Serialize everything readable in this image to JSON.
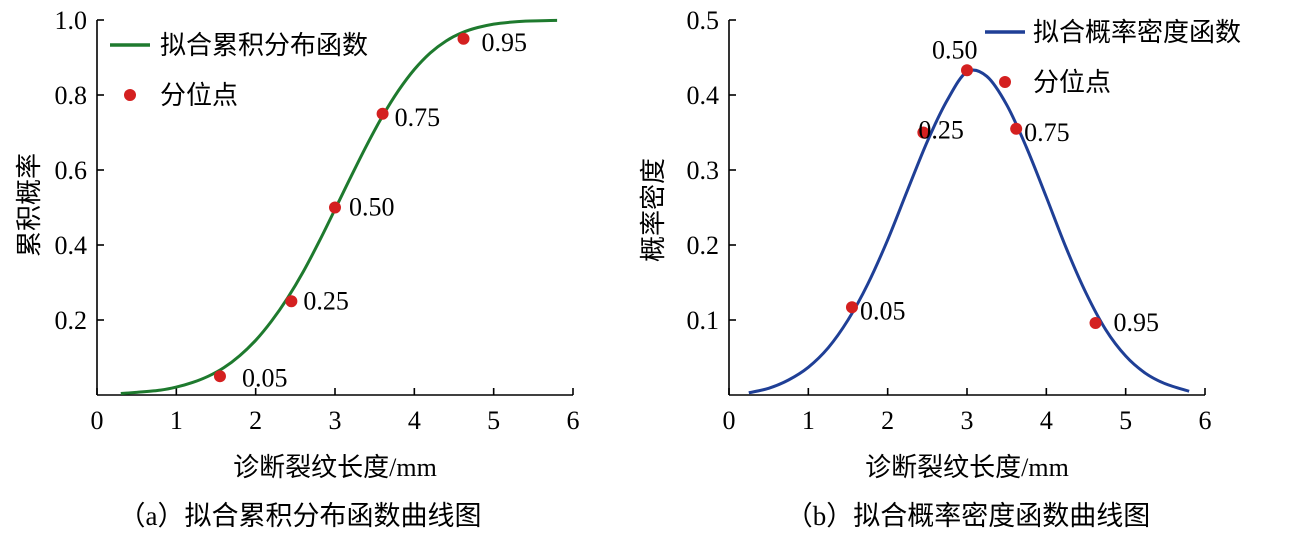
{
  "chart_data": [
    {
      "type": "line",
      "caption": "（a）拟合累积分布函数曲线图",
      "xlabel": "诊断裂纹长度/mm",
      "ylabel": "累积概率",
      "xlim": [
        0,
        6
      ],
      "ylim": [
        0,
        1.0
      ],
      "x_ticks": [
        "0",
        "1",
        "2",
        "3",
        "4",
        "5",
        "6"
      ],
      "y_ticks": [
        "0.2",
        "0.4",
        "0.6",
        "0.8",
        "1.0"
      ],
      "color": "#1e7a2e",
      "marker_color": "#d42020",
      "legend_position": "top-left",
      "series": [
        {
          "name": "拟合累积分布函数",
          "kind": "line",
          "x": [
            0.3,
            0.5,
            0.8,
            1.0,
            1.2,
            1.4,
            1.6,
            1.8,
            2.0,
            2.2,
            2.4,
            2.6,
            2.8,
            3.0,
            3.2,
            3.4,
            3.6,
            3.8,
            4.0,
            4.2,
            4.4,
            4.6,
            4.8,
            5.0,
            5.2,
            5.4,
            5.6,
            5.8
          ],
          "y": [
            0.004,
            0.007,
            0.013,
            0.021,
            0.033,
            0.05,
            0.073,
            0.105,
            0.146,
            0.197,
            0.258,
            0.329,
            0.409,
            0.495,
            0.582,
            0.666,
            0.744,
            0.812,
            0.868,
            0.912,
            0.944,
            0.966,
            0.98,
            0.989,
            0.994,
            0.997,
            0.998,
            0.999
          ]
        },
        {
          "name": "分位点",
          "kind": "scatter",
          "x": [
            1.55,
            2.45,
            3.0,
            3.6,
            4.62
          ],
          "y": [
            0.05,
            0.25,
            0.5,
            0.75,
            0.95
          ],
          "labels": [
            "0.05",
            "0.25",
            "0.50",
            "0.75",
            "0.95"
          ]
        }
      ]
    },
    {
      "type": "line",
      "caption": "（b）拟合概率密度函数曲线图",
      "xlabel": "诊断裂纹长度/mm",
      "ylabel": "概率密度",
      "xlim": [
        0,
        6
      ],
      "ylim": [
        0,
        0.5
      ],
      "x_ticks": [
        "0",
        "1",
        "2",
        "3",
        "4",
        "5",
        "6"
      ],
      "y_ticks": [
        "0.1",
        "0.2",
        "0.3",
        "0.4",
        "0.5"
      ],
      "color": "#1f3f96",
      "marker_color": "#d42020",
      "legend_position": "top-right",
      "series": [
        {
          "name": "拟合概率密度函数",
          "kind": "line",
          "x": [
            0.25,
            0.5,
            0.75,
            1.0,
            1.25,
            1.5,
            1.75,
            2.0,
            2.25,
            2.5,
            2.75,
            3.0,
            3.25,
            3.5,
            3.75,
            4.0,
            4.25,
            4.5,
            4.75,
            5.0,
            5.25,
            5.5,
            5.8
          ],
          "y": [
            0.003,
            0.009,
            0.02,
            0.037,
            0.063,
            0.1,
            0.148,
            0.207,
            0.273,
            0.338,
            0.393,
            0.431,
            0.425,
            0.387,
            0.33,
            0.264,
            0.196,
            0.136,
            0.087,
            0.052,
            0.029,
            0.015,
            0.005
          ]
        },
        {
          "name": "分位点",
          "kind": "scatter",
          "x": [
            1.55,
            2.45,
            3.0,
            3.62,
            4.62
          ],
          "y": [
            0.117,
            0.35,
            0.433,
            0.355,
            0.096
          ],
          "labels": [
            "0.05",
            "0.25",
            "0.50",
            "0.75",
            "0.95"
          ]
        }
      ]
    }
  ]
}
